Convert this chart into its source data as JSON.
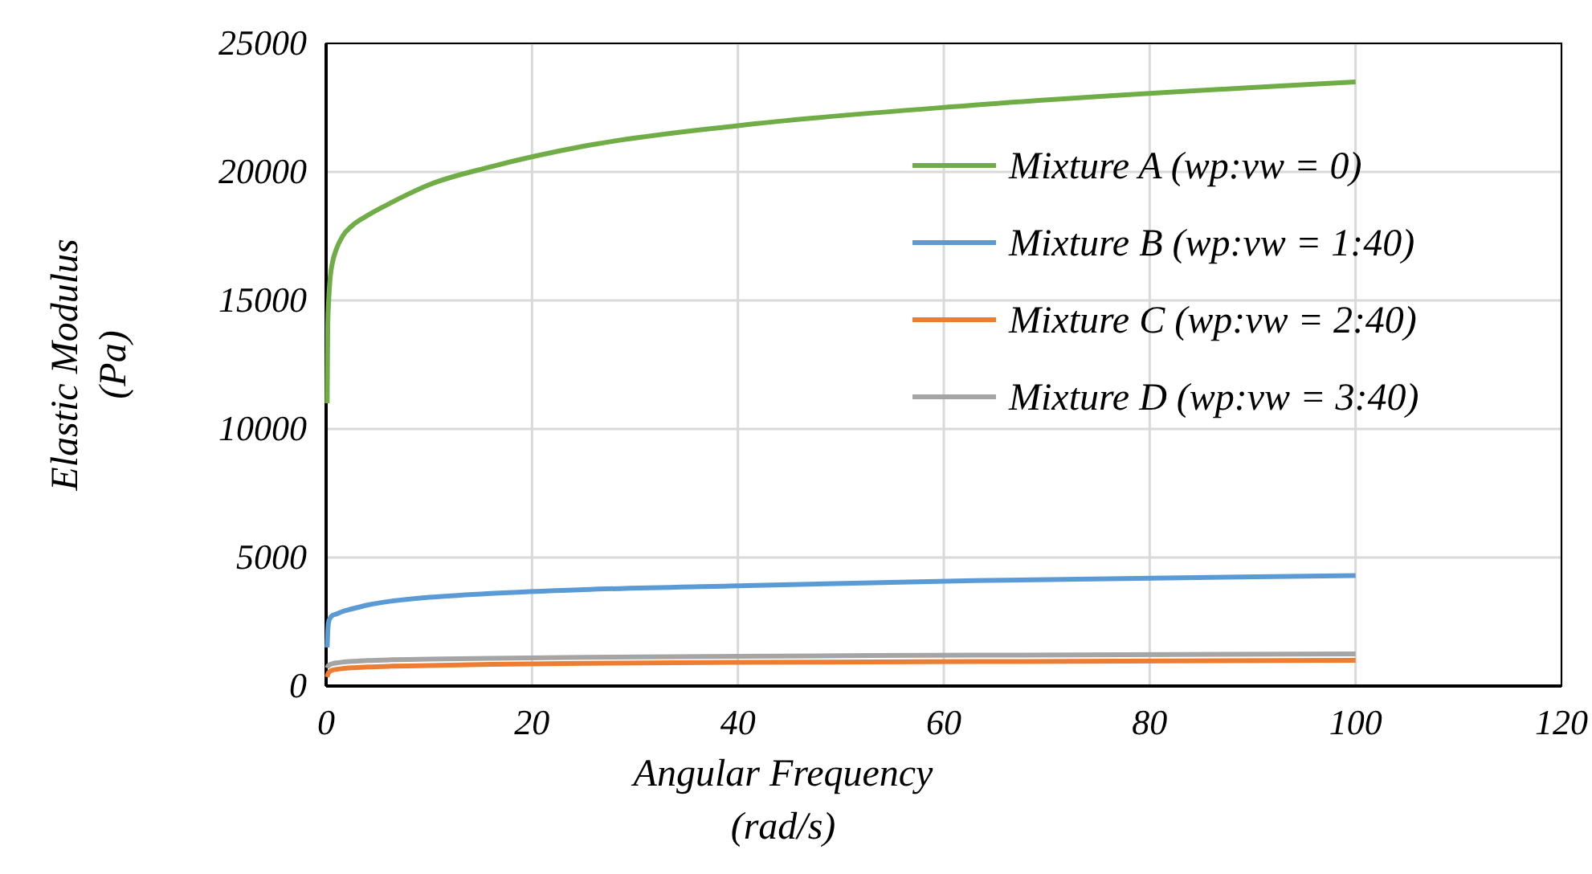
{
  "chart_data": {
    "type": "line",
    "xlabel": "Angular Frequency\n(rad/s)",
    "ylabel": "Elastic Modulus\n(Pa)",
    "xlim": [
      0,
      120
    ],
    "xticks": [
      0,
      20,
      40,
      60,
      80,
      100,
      120
    ],
    "ylim": [
      0,
      25000
    ],
    "yticks": [
      0,
      5000,
      10000,
      15000,
      20000,
      25000
    ],
    "grid": true,
    "legend": "top right",
    "marker": "none",
    "line_style": "solid",
    "x": [
      0.1,
      0.16,
      0.25,
      0.4,
      0.63,
      1,
      1.6,
      2.5,
      4,
      6.3,
      10,
      16,
      25,
      40,
      63,
      100
    ],
    "series": [
      {
        "name": "Mixture A (wp:vw = 0)",
        "color": "#70ad47",
        "values": [
          11000,
          14000,
          15000,
          15900,
          16500,
          17000,
          17500,
          17900,
          18300,
          18800,
          19500,
          20200,
          21000,
          21800,
          22600,
          23500
        ]
      },
      {
        "name": "Mixture B (wp:vw = 1:40)",
        "color": "#5b9bd5",
        "values": [
          1500,
          2100,
          2500,
          2650,
          2750,
          2800,
          2900,
          3000,
          3150,
          3300,
          3450,
          3600,
          3750,
          3900,
          4100,
          4300
        ]
      },
      {
        "name": "Mixture C (wp:vw = 2:40)",
        "color": "#ed7d31",
        "values": [
          350,
          450,
          520,
          580,
          620,
          650,
          680,
          710,
          740,
          770,
          800,
          840,
          880,
          920,
          950,
          1000
        ]
      },
      {
        "name": "Mixture D (wp:vw = 3:40)",
        "color": "#a5a5a5",
        "values": [
          700,
          760,
          800,
          840,
          870,
          900,
          930,
          960,
          990,
          1020,
          1050,
          1080,
          1120,
          1160,
          1200,
          1250
        ]
      }
    ]
  }
}
